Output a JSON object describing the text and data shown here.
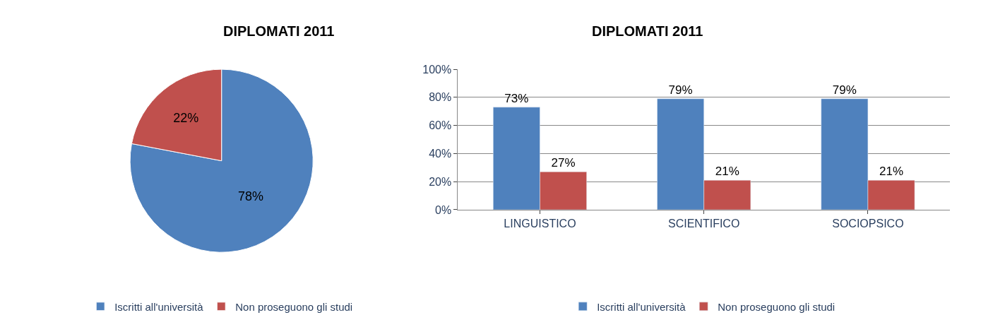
{
  "chart_data": [
    {
      "type": "pie",
      "title": "DIPLOMATI 2011",
      "categories": [
        "Iscritti all'università",
        "Non proseguono gli studi"
      ],
      "values": [
        78,
        22
      ],
      "value_labels": [
        "78%",
        "22%"
      ],
      "colors": [
        "#4f81bd",
        "#c0504d"
      ],
      "legend": "bottom"
    },
    {
      "type": "bar",
      "title": "DIPLOMATI 2011",
      "categories": [
        "LINGUISTICO",
        "SCIENTIFICO",
        "SOCIOPSICO"
      ],
      "series": [
        {
          "name": "Iscritti all'università",
          "color": "#4f81bd",
          "values": [
            73,
            79,
            79
          ],
          "value_labels": [
            "73%",
            "79%",
            "79%"
          ]
        },
        {
          "name": "Non proseguono gli studi",
          "color": "#c0504d",
          "values": [
            27,
            21,
            21
          ],
          "value_labels": [
            "27%",
            "21%",
            "21%"
          ]
        }
      ],
      "ylim": [
        0,
        100
      ],
      "yticks": [
        {
          "value": 0,
          "label": "0%"
        },
        {
          "value": 20,
          "label": "20%"
        },
        {
          "value": 40,
          "label": "40%"
        },
        {
          "value": 60,
          "label": "60%"
        },
        {
          "value": 80,
          "label": "80%"
        },
        {
          "value": 100,
          "label": "100%"
        }
      ],
      "grid": "y",
      "legend": "bottom"
    }
  ]
}
